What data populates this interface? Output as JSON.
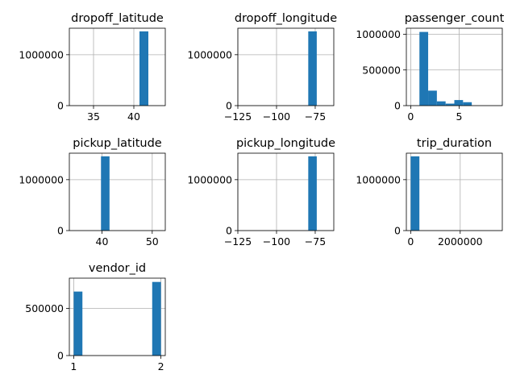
{
  "colors": {
    "bar": "#1f77b4",
    "grid": "#b0b0b0",
    "axes": "#000000",
    "background": "#ffffff"
  },
  "chart_data": [
    {
      "type": "bar",
      "title": "dropoff_latitude",
      "grid": true,
      "xlim": [
        32.0,
        43.9
      ],
      "ylim": [
        0,
        1520000
      ],
      "xticks": [
        35,
        40
      ],
      "xtick_labels": [
        "35",
        "40"
      ],
      "yticks": [
        0,
        1000000
      ],
      "ytick_labels": [
        "0",
        "1000000"
      ],
      "bins": [
        {
          "x0": 40.7,
          "x1": 41.8,
          "count": 1458000
        }
      ]
    },
    {
      "type": "bar",
      "title": "dropoff_longitude",
      "grid": true,
      "xlim": [
        -125,
        -63
      ],
      "ylim": [
        0,
        1520000
      ],
      "xticks": [
        -125,
        -100,
        -75
      ],
      "xtick_labels": [
        "−125",
        "−100",
        "−75"
      ],
      "yticks": [
        0,
        1000000
      ],
      "ytick_labels": [
        "0",
        "1000000"
      ],
      "bins": [
        {
          "x0": -79.5,
          "x1": -74.0,
          "count": 1458000
        }
      ]
    },
    {
      "type": "bar",
      "title": "passenger_count",
      "grid": true,
      "xlim": [
        -0.45,
        9.45
      ],
      "ylim": [
        0,
        1085000
      ],
      "xticks": [
        0,
        5
      ],
      "xtick_labels": [
        "0",
        "5"
      ],
      "yticks": [
        0,
        500000,
        1000000
      ],
      "ytick_labels": [
        "0",
        "500000",
        "1000000"
      ],
      "bins": [
        {
          "x0": 0.9,
          "x1": 1.8,
          "count": 1033000
        },
        {
          "x0": 1.8,
          "x1": 2.7,
          "count": 210000
        },
        {
          "x0": 2.7,
          "x1": 3.6,
          "count": 60000
        },
        {
          "x0": 3.6,
          "x1": 4.5,
          "count": 28000
        },
        {
          "x0": 4.5,
          "x1": 5.4,
          "count": 78000
        },
        {
          "x0": 5.4,
          "x1": 6.3,
          "count": 48000
        }
      ]
    },
    {
      "type": "bar",
      "title": "pickup_latitude",
      "grid": true,
      "xlim": [
        33.5,
        52.6
      ],
      "ylim": [
        0,
        1520000
      ],
      "xticks": [
        40,
        50
      ],
      "xtick_labels": [
        "40",
        "50"
      ],
      "yticks": [
        0,
        1000000
      ],
      "ytick_labels": [
        "0",
        "1000000"
      ],
      "bins": [
        {
          "x0": 39.8,
          "x1": 41.5,
          "count": 1458000
        }
      ]
    },
    {
      "type": "bar",
      "title": "pickup_longitude",
      "grid": true,
      "xlim": [
        -125,
        -63
      ],
      "ylim": [
        0,
        1520000
      ],
      "xticks": [
        -125,
        -100,
        -75
      ],
      "xtick_labels": [
        "−125",
        "−100",
        "−75"
      ],
      "yticks": [
        0,
        1000000
      ],
      "ytick_labels": [
        "0",
        "1000000"
      ],
      "bins": [
        {
          "x0": -79.5,
          "x1": -74.0,
          "count": 1458000
        }
      ]
    },
    {
      "type": "bar",
      "title": "trip_duration",
      "grid": true,
      "xlim": [
        -175000,
        3700000
      ],
      "ylim": [
        0,
        1520000
      ],
      "xticks": [
        0,
        2000000
      ],
      "xtick_labels": [
        "0",
        "2000000"
      ],
      "yticks": [
        0,
        1000000
      ],
      "ytick_labels": [
        "0",
        "1000000"
      ],
      "bins": [
        {
          "x0": 0,
          "x1": 352000,
          "count": 1458000
        }
      ]
    },
    {
      "type": "bar",
      "title": "vendor_id",
      "grid": true,
      "xlim": [
        0.95,
        2.05
      ],
      "ylim": [
        0,
        820000
      ],
      "xticks": [
        1,
        2
      ],
      "xtick_labels": [
        "1",
        "2"
      ],
      "yticks": [
        0,
        500000
      ],
      "ytick_labels": [
        "0",
        "500000"
      ],
      "bins": [
        {
          "x0": 1.0,
          "x1": 1.1,
          "count": 678000
        },
        {
          "x0": 1.9,
          "x1": 2.0,
          "count": 780000
        }
      ]
    }
  ]
}
